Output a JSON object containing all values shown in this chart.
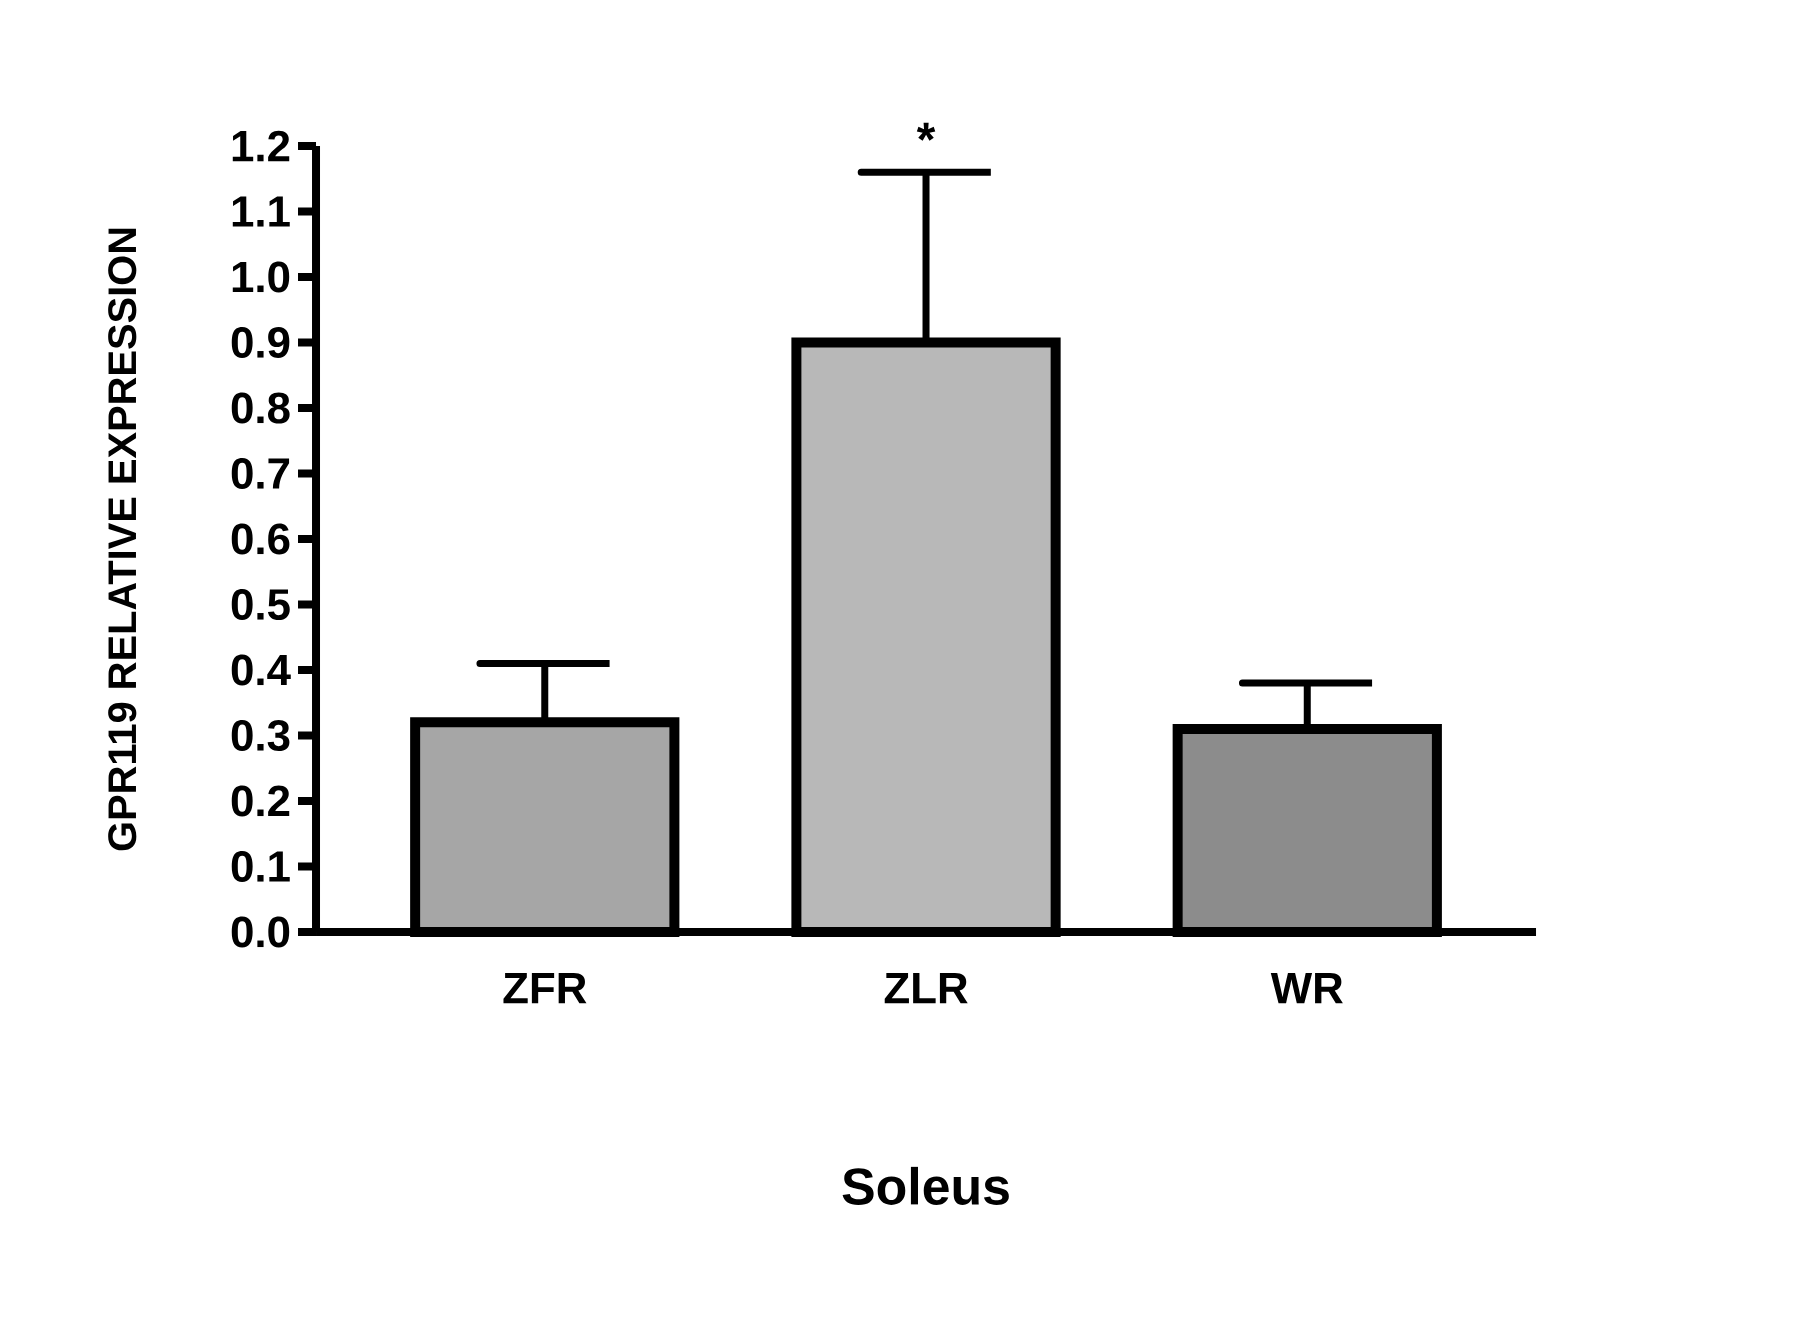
{
  "chart_data": {
    "type": "bar",
    "xlabel": "Soleus",
    "ylabel": "GPR119 RELATIVE EXPRESSION",
    "categories": [
      "ZFR",
      "ZLR",
      "WR"
    ],
    "values": [
      0.32,
      0.9,
      0.31
    ],
    "errors": [
      [
        0.32,
        0.41
      ],
      [
        0.9,
        1.16
      ],
      [
        0.31,
        0.38
      ]
    ],
    "colors": [
      "#a6a6a6",
      "#b8b8b8",
      "#8c8c8c"
    ],
    "ylim": [
      0,
      1.2
    ],
    "yticks": [
      {
        "value": 0,
        "label": "0.0"
      },
      0.1,
      0.2,
      0.3,
      0.4,
      0.5,
      0.6,
      0.7,
      0.8,
      0.9,
      {
        "value": 1,
        "label": "1.0"
      },
      1.1,
      1.2
    ],
    "annotations": [
      "*"
    ]
  }
}
